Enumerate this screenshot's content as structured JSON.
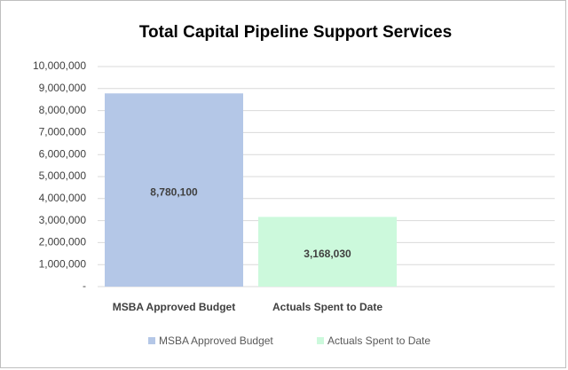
{
  "chart_data": {
    "type": "bar",
    "title": "Total Capital Pipeline Support Services",
    "categories": [
      "MSBA Approved Budget",
      "Actuals Spent to Date"
    ],
    "series": [
      {
        "name": "MSBA Approved Budget",
        "color": "#b4c7e7",
        "values": [
          8780100,
          null
        ],
        "value_labels": [
          "8,780,100",
          null
        ]
      },
      {
        "name": "Actuals Spent to Date",
        "color": "#ccf9dc",
        "values": [
          null,
          3168030
        ],
        "value_labels": [
          null,
          "3,168,030"
        ]
      }
    ],
    "ylim": [
      0,
      10000000
    ],
    "yticks": [
      {
        "value": 0,
        "label": "-"
      },
      {
        "value": 1000000,
        "label": "1,000,000"
      },
      {
        "value": 2000000,
        "label": "2,000,000"
      },
      {
        "value": 3000000,
        "label": "3,000,000"
      },
      {
        "value": 4000000,
        "label": "4,000,000"
      },
      {
        "value": 5000000,
        "label": "5,000,000"
      },
      {
        "value": 6000000,
        "label": "6,000,000"
      },
      {
        "value": 7000000,
        "label": "7,000,000"
      },
      {
        "value": 8000000,
        "label": "8,000,000"
      },
      {
        "value": 9000000,
        "label": "9,000,000"
      },
      {
        "value": 10000000,
        "label": "10,000,000"
      }
    ],
    "grid": true,
    "legend": "bottom"
  }
}
